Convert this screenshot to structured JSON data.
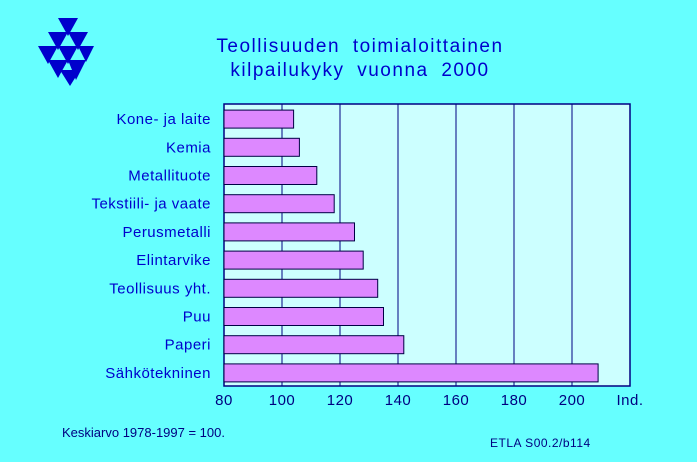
{
  "header": {
    "title_line1": "Teollisuuden toimialoittainen",
    "title_line2": "kilpailukyky vuonna 2000"
  },
  "footer": {
    "average_note": "Keskiarvo 1978-1997 = 100.",
    "source": "ETLA S00.2/b114"
  },
  "colors": {
    "background": "#66ffff",
    "plot_area": "#ccffff",
    "bar_fill": "#dd88ff",
    "bar_stroke": "#000044",
    "axis": "#000080",
    "text": "#0000cc"
  },
  "logo": {
    "icon": "etla-triangles-logo"
  },
  "chart_data": {
    "type": "bar",
    "orientation": "horizontal",
    "categories": [
      "Kone- ja laite",
      "Kemia",
      "Metallituote",
      "Tekstiili- ja vaate",
      "Perusmetalli",
      "Elintarvike",
      "Teollisuus yht.",
      "Puu",
      "Paperi",
      "Sähkötekninen"
    ],
    "values": [
      104,
      106,
      112,
      118,
      125,
      128,
      133,
      135,
      142,
      209
    ],
    "xlim": [
      80,
      220
    ],
    "xticks": [
      80,
      100,
      120,
      140,
      160,
      180,
      200
    ],
    "xunit": "Ind.",
    "grid": "vertical",
    "title": "Teollisuuden toimialoittainen kilpailukyky vuonna 2000"
  }
}
